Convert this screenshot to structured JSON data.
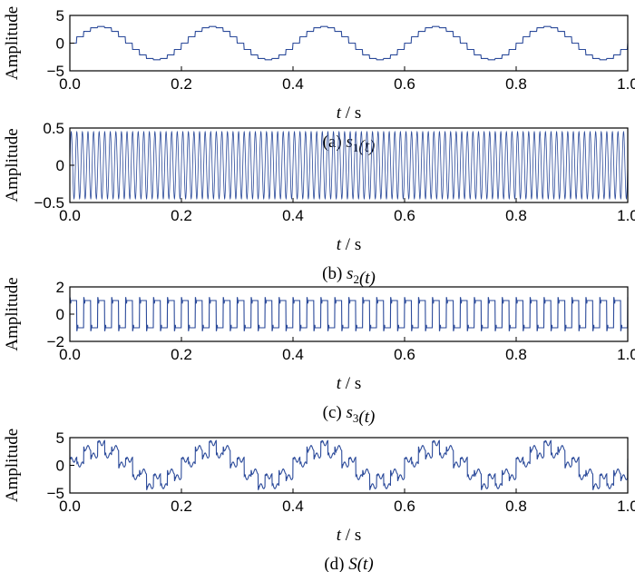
{
  "chart_data": [
    {
      "type": "line",
      "caption_prefix": "(a)",
      "caption_var": "s",
      "caption_sub": "1",
      "caption_arg": "(t)",
      "ylabel": "Amplitude",
      "xlabel_var": "t",
      "xlabel_unit": " / s",
      "xlim": [
        0,
        1
      ],
      "ylim": [
        -5,
        5
      ],
      "xticks": [
        "0.0",
        "0.2",
        "0.4",
        "0.6",
        "0.8",
        "1.0"
      ],
      "yticks": [
        "5",
        "0",
        "−5"
      ],
      "series": [
        {
          "waveform": "sine",
          "amplitude": 3.0,
          "frequency_hz": 5,
          "step_hz": 80,
          "color": "#2b4a9a"
        }
      ]
    },
    {
      "type": "line",
      "caption_prefix": "(b)",
      "caption_var": "s",
      "caption_sub": "2",
      "caption_arg": "(t)",
      "ylabel": "Amplitude",
      "xlabel_var": "t",
      "xlabel_unit": " / s",
      "xlim": [
        0,
        1
      ],
      "ylim": [
        -0.5,
        0.5
      ],
      "xticks": [
        "0.0",
        "0.2",
        "0.4",
        "0.6",
        "0.8",
        "1.0"
      ],
      "yticks": [
        "0.5",
        "0",
        "−0.5"
      ],
      "series": [
        {
          "waveform": "sine",
          "amplitude": 0.45,
          "frequency_hz": 100,
          "color": "#2b4a9a"
        }
      ]
    },
    {
      "type": "line",
      "caption_prefix": "(c)",
      "caption_var": "s",
      "caption_sub": "3",
      "caption_arg": "(t)",
      "ylabel": "Amplitude",
      "xlabel_var": "t",
      "xlabel_unit": " / s",
      "xlim": [
        0,
        1
      ],
      "ylim": [
        -2,
        2
      ],
      "xticks": [
        "0.0",
        "0.2",
        "0.4",
        "0.6",
        "0.8",
        "1.0"
      ],
      "yticks": [
        "2",
        "0",
        "−2"
      ],
      "series": [
        {
          "waveform": "square",
          "amplitude": 1.0,
          "frequency_hz": 40,
          "color": "#2b4a9a"
        }
      ]
    },
    {
      "type": "line",
      "caption_prefix": "(d)",
      "caption_var": "S",
      "caption_sub": "",
      "caption_arg": "(t)",
      "ylabel": "Amplitude",
      "xlabel_var": "t",
      "xlabel_unit": " / s",
      "xlim": [
        0,
        1
      ],
      "ylim": [
        -5,
        5
      ],
      "xticks": [
        "0.0",
        "0.2",
        "0.4",
        "0.6",
        "0.8",
        "1.0"
      ],
      "yticks": [
        "5",
        "0",
        "−5"
      ],
      "series": [
        {
          "waveform": "sum",
          "components": [
            "s1",
            "s2",
            "s3"
          ],
          "color": "#2b4a9a"
        }
      ]
    }
  ]
}
